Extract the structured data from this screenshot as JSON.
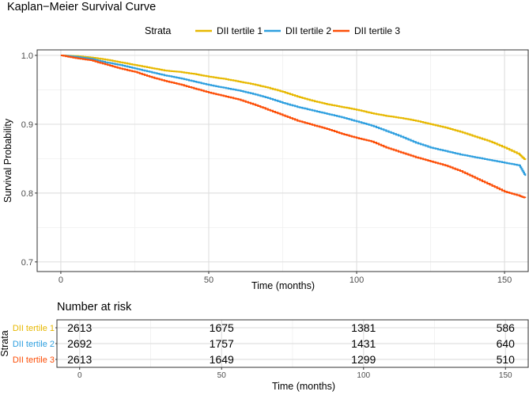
{
  "chart_data": [
    {
      "type": "line",
      "subtype": "step",
      "title": "Kaplan−Meier Survival Curve",
      "xlabel": "Time (months)",
      "ylabel": "Survival Probability",
      "xlim": [
        -8,
        158
      ],
      "ylim": [
        0.686,
        1.008
      ],
      "xticks": [
        0,
        50,
        100,
        150
      ],
      "yticks": [
        0.7,
        0.8,
        0.9,
        1.0
      ],
      "ytick_labels": [
        "0.7",
        "0.8",
        "0.9",
        "1.0"
      ],
      "grid": true,
      "legend": {
        "title": "Strata",
        "position": "top"
      },
      "series": [
        {
          "name": "DII tertile 1",
          "color": "#E7B800",
          "x": [
            0,
            5,
            10,
            15,
            20,
            25,
            30,
            35,
            40,
            45,
            50,
            55,
            60,
            65,
            70,
            75,
            80,
            85,
            90,
            95,
            100,
            105,
            110,
            115,
            120,
            125,
            130,
            135,
            140,
            145,
            150,
            155,
            157
          ],
          "y": [
            1.0,
            0.999,
            0.997,
            0.994,
            0.99,
            0.986,
            0.982,
            0.978,
            0.976,
            0.973,
            0.969,
            0.966,
            0.962,
            0.958,
            0.953,
            0.947,
            0.94,
            0.934,
            0.929,
            0.925,
            0.921,
            0.916,
            0.912,
            0.909,
            0.905,
            0.9,
            0.895,
            0.889,
            0.882,
            0.875,
            0.866,
            0.856,
            0.848
          ]
        },
        {
          "name": "DII tertile 2",
          "color": "#2E9FDF",
          "x": [
            0,
            5,
            10,
            15,
            20,
            25,
            30,
            35,
            40,
            45,
            50,
            55,
            60,
            65,
            70,
            75,
            80,
            85,
            90,
            95,
            100,
            105,
            110,
            115,
            120,
            125,
            130,
            135,
            140,
            145,
            150,
            155,
            157
          ],
          "y": [
            1.0,
            0.998,
            0.995,
            0.99,
            0.986,
            0.981,
            0.976,
            0.971,
            0.967,
            0.962,
            0.957,
            0.953,
            0.949,
            0.944,
            0.938,
            0.931,
            0.925,
            0.92,
            0.915,
            0.91,
            0.904,
            0.898,
            0.89,
            0.882,
            0.873,
            0.866,
            0.861,
            0.856,
            0.852,
            0.848,
            0.844,
            0.84,
            0.825
          ]
        },
        {
          "name": "DII tertile 3",
          "color": "#FC4E07",
          "x": [
            0,
            5,
            10,
            15,
            20,
            25,
            30,
            35,
            40,
            45,
            50,
            55,
            60,
            65,
            70,
            75,
            80,
            85,
            90,
            95,
            100,
            105,
            110,
            115,
            120,
            125,
            130,
            135,
            140,
            145,
            150,
            155,
            157
          ],
          "y": [
            1.0,
            0.996,
            0.993,
            0.987,
            0.981,
            0.976,
            0.969,
            0.963,
            0.958,
            0.952,
            0.946,
            0.941,
            0.936,
            0.929,
            0.921,
            0.913,
            0.905,
            0.899,
            0.893,
            0.886,
            0.88,
            0.875,
            0.866,
            0.859,
            0.852,
            0.846,
            0.84,
            0.832,
            0.822,
            0.812,
            0.802,
            0.796,
            0.793
          ]
        }
      ]
    },
    {
      "type": "table",
      "title": "Number at risk",
      "xlabel": "Time (months)",
      "ylabel": "Strata",
      "xlim": [
        -8,
        158
      ],
      "xticks": [
        0,
        50,
        100,
        150
      ],
      "grid": true,
      "rows": [
        {
          "name": "DII tertile 1",
          "color": "#E7B800",
          "values": [
            2613,
            1675,
            1381,
            586
          ]
        },
        {
          "name": "DII tertile 2",
          "color": "#2E9FDF",
          "values": [
            2692,
            1757,
            1431,
            640
          ]
        },
        {
          "name": "DII tertile 3",
          "color": "#FC4E07",
          "values": [
            2613,
            1649,
            1299,
            510
          ]
        }
      ]
    }
  ]
}
